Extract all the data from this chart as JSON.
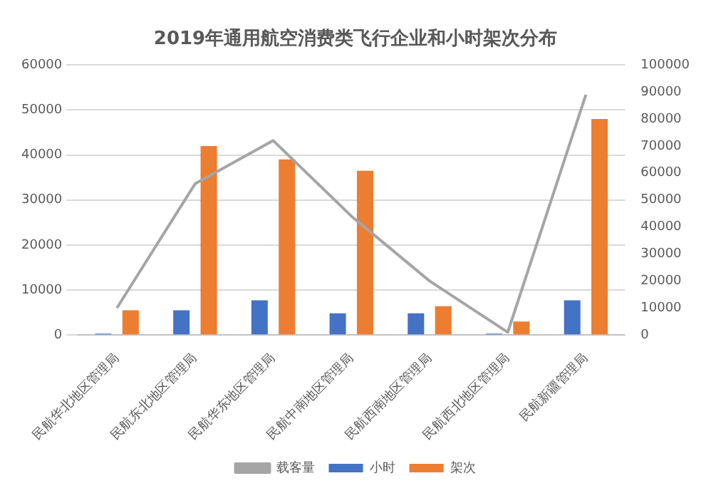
{
  "chart_data": {
    "type": "bar",
    "title": "2019年通用航空消费类飞行企业和小时架次分布",
    "categories": [
      "民航华北地区管理局",
      "民航东北地区管理局",
      "民航华东地区管理局",
      "民航中南地区管理局",
      "民航西南地区管理局",
      "民航西北地区管理局",
      "民航新疆管理局"
    ],
    "series": [
      {
        "name": "小时",
        "color": "#4472c4",
        "values": [
          300,
          5500,
          7700,
          4800,
          4800,
          300,
          7700
        ]
      },
      {
        "name": "架次",
        "color": "#ed7d31",
        "values": [
          5500,
          42000,
          39000,
          36500,
          6400,
          3000,
          48000
        ]
      },
      {
        "name": "载客量",
        "type": "line",
        "axis": "y2",
        "color": "#a5a5a5",
        "values": [
          10000,
          56000,
          72000,
          44000,
          20000,
          1000,
          89000
        ]
      }
    ],
    "ylim": [
      0,
      60000
    ],
    "yticks": [
      0,
      10000,
      20000,
      30000,
      40000,
      50000,
      60000
    ],
    "y2lim": [
      0,
      100000
    ],
    "y2ticks": [
      0,
      10000,
      20000,
      30000,
      40000,
      50000,
      60000,
      70000,
      80000,
      90000,
      100000
    ],
    "grid": "y",
    "legend": "bottom",
    "marker": "none"
  }
}
